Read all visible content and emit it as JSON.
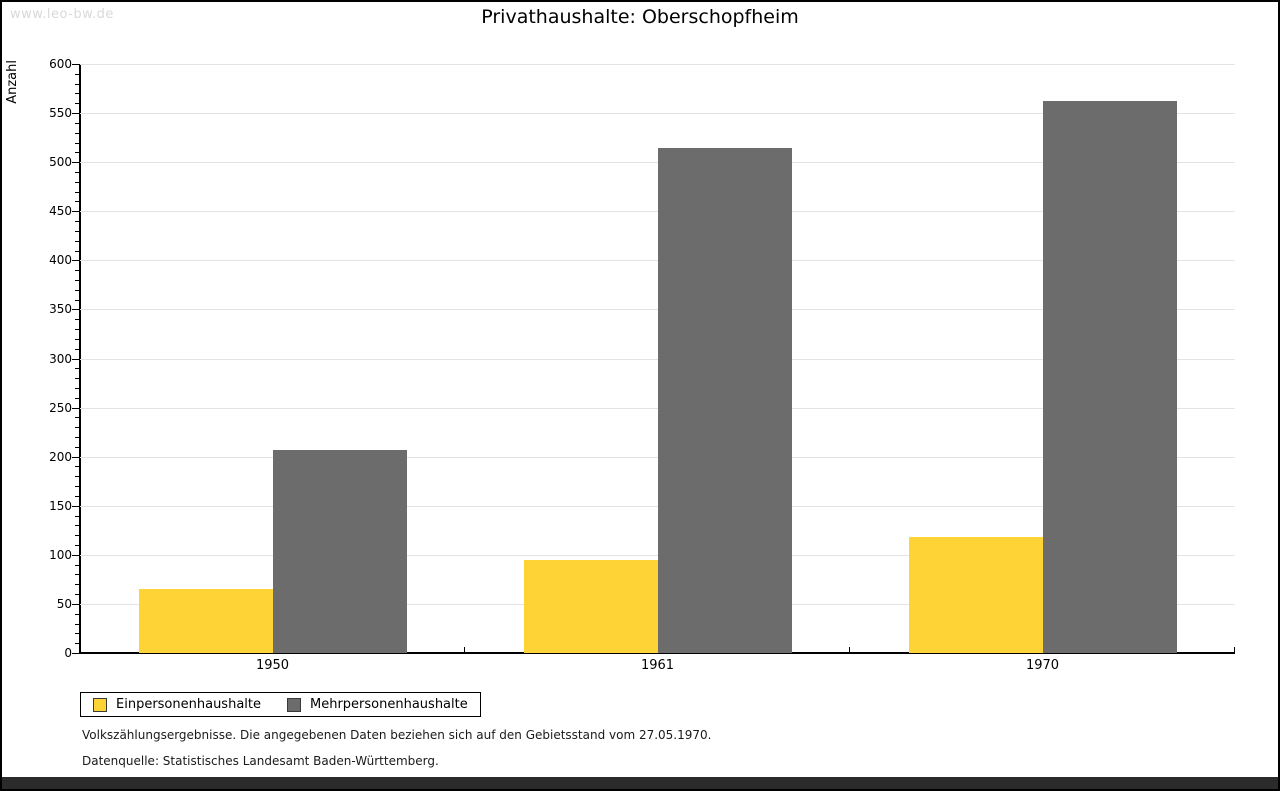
{
  "watermark": "www.leo-bw.de",
  "chart_data": {
    "type": "bar",
    "title": "Privathaushalte: Oberschopfheim",
    "ylabel": "Anzahl",
    "xlabel": "",
    "categories": [
      "1950",
      "1961",
      "1970"
    ],
    "series": [
      {
        "name": "Einpersonenhaushalte",
        "color": "#fdd335",
        "values": [
          65,
          95,
          118
        ]
      },
      {
        "name": "Mehrpersonenhaushalte",
        "color": "#6c6c6c",
        "values": [
          207,
          514,
          562
        ]
      }
    ],
    "ylim": [
      0,
      600
    ],
    "y_major_step": 50,
    "y_minor_step": 10,
    "grid": "horizontal-major",
    "legend_position": "bottom-left"
  },
  "footnotes": [
    "Volkszählungsergebnisse. Die angegebenen Daten beziehen sich auf den Gebietsstand vom 27.05.1970.",
    "Datenquelle: Statistisches Landesamt Baden-Württemberg."
  ],
  "colors": {
    "gridline": "#e3e3e3",
    "axis": "#000000",
    "watermark": "#d9d9d9",
    "bottom_bar": "#2b2b2b"
  }
}
